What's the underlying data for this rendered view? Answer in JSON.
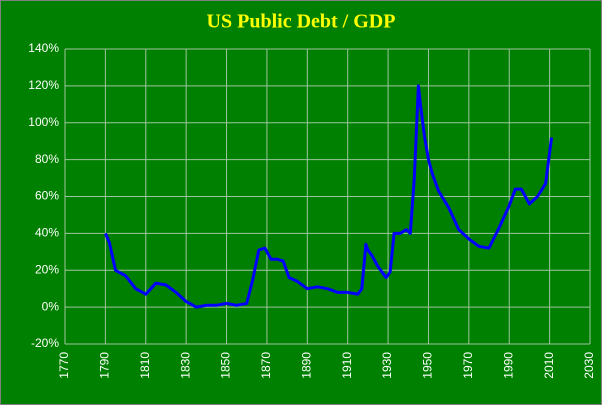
{
  "chart_data": {
    "type": "line",
    "title": "US Public Debt / GDP",
    "series": [
      {
        "color": "#0000ff",
        "x": [
          1790,
          1792,
          1795,
          1800,
          1805,
          1810,
          1815,
          1820,
          1825,
          1830,
          1835,
          1840,
          1845,
          1850,
          1855,
          1860,
          1863,
          1866,
          1869,
          1872,
          1875,
          1878,
          1881,
          1885,
          1890,
          1895,
          1900,
          1905,
          1910,
          1915,
          1917,
          1919,
          1920,
          1922,
          1925,
          1929,
          1931,
          1933,
          1936,
          1939,
          1941,
          1943,
          1945,
          1946,
          1948,
          1950,
          1952,
          1955,
          1960,
          1965,
          1970,
          1975,
          1980,
          1985,
          1990,
          1993,
          1996,
          2000,
          2004,
          2008,
          2011
        ],
        "values": [
          40,
          35,
          20,
          17,
          10,
          7,
          13,
          12,
          8,
          3,
          0,
          1,
          1,
          2,
          1,
          2,
          15,
          31,
          32,
          26,
          26,
          25,
          16,
          14,
          10,
          11,
          10,
          8,
          8,
          7,
          10,
          34,
          31,
          28,
          22,
          16,
          19,
          40,
          40,
          42,
          40,
          70,
          120,
          110,
          93,
          80,
          72,
          63,
          54,
          42,
          37,
          33,
          32,
          43,
          55,
          64,
          64,
          56,
          60,
          67,
          92
        ]
      }
    ],
    "xlim": [
      1770,
      2030
    ],
    "xticks": [
      1770,
      1790,
      1810,
      1830,
      1850,
      1870,
      1890,
      1910,
      1930,
      1950,
      1970,
      1990,
      2010,
      2030
    ],
    "ylim": [
      -20,
      140
    ],
    "yticks": [
      {
        "value": -20,
        "label": "-20%"
      },
      {
        "value": 0,
        "label": "0%"
      },
      {
        "value": 20,
        "label": "20%"
      },
      {
        "value": 40,
        "label": "40%"
      },
      {
        "value": 60,
        "label": "60%"
      },
      {
        "value": 80,
        "label": "80%"
      },
      {
        "value": 100,
        "label": "100%"
      },
      {
        "value": 120,
        "label": "120%"
      },
      {
        "value": 140,
        "label": "140%"
      }
    ],
    "grid": true
  }
}
